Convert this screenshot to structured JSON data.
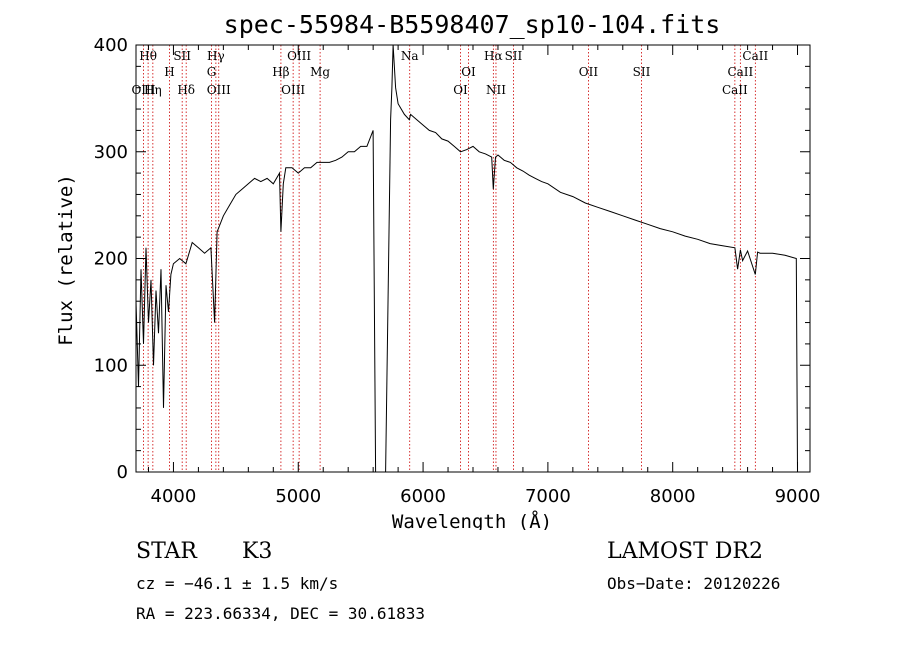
{
  "chart_data": {
    "type": "line",
    "title": "spec-55984-B5598407_sp10-104.fits",
    "xlabel": "Wavelength (Å)",
    "ylabel": "Flux (relative)",
    "xlim": [
      3700,
      9100
    ],
    "ylim": [
      0,
      400
    ],
    "xticks": [
      4000,
      5000,
      6000,
      7000,
      8000,
      9000
    ],
    "yticks": [
      0,
      100,
      200,
      300,
      400
    ],
    "grid": false,
    "series": [
      {
        "x": [
          3700,
          3720,
          3740,
          3760,
          3780,
          3800,
          3820,
          3840,
          3860,
          3880,
          3900,
          3920,
          3940,
          3960,
          3980,
          4000,
          4050,
          4100,
          4150,
          4200,
          4250,
          4300,
          4330,
          4350,
          4400,
          4450,
          4500,
          4550,
          4600,
          4650,
          4700,
          4750,
          4800,
          4850,
          4861,
          4880,
          4900,
          4950,
          5000,
          5050,
          5100,
          5150,
          5200,
          5250,
          5300,
          5350,
          5400,
          5450,
          5500,
          5550,
          5600,
          5620,
          5630,
          5650,
          5700,
          5740,
          5750,
          5760,
          5780,
          5800,
          5850,
          5890,
          5900,
          5950,
          6000,
          6050,
          6100,
          6150,
          6200,
          6250,
          6300,
          6350,
          6400,
          6450,
          6500,
          6550,
          6563,
          6580,
          6600,
          6650,
          6700,
          6750,
          6800,
          6850,
          6900,
          6950,
          7000,
          7100,
          7200,
          7300,
          7400,
          7500,
          7600,
          7700,
          7800,
          7900,
          8000,
          8100,
          8200,
          8300,
          8400,
          8498,
          8520,
          8542,
          8560,
          8600,
          8662,
          8680,
          8700,
          8800,
          8900,
          8990,
          9000
        ],
        "y": [
          160,
          80,
          190,
          120,
          210,
          140,
          180,
          100,
          170,
          130,
          190,
          60,
          175,
          150,
          185,
          195,
          200,
          195,
          215,
          210,
          205,
          210,
          140,
          225,
          240,
          250,
          260,
          265,
          270,
          275,
          272,
          275,
          270,
          280,
          225,
          270,
          285,
          285,
          280,
          285,
          285,
          290,
          290,
          290,
          292,
          295,
          300,
          300,
          305,
          305,
          320,
          0,
          0,
          0,
          0,
          330,
          360,
          400,
          360,
          345,
          335,
          330,
          335,
          330,
          325,
          320,
          318,
          312,
          310,
          305,
          300,
          302,
          305,
          300,
          298,
          295,
          265,
          295,
          297,
          292,
          290,
          285,
          282,
          278,
          275,
          272,
          270,
          262,
          258,
          252,
          248,
          244,
          240,
          236,
          232,
          228,
          225,
          221,
          218,
          214,
          212,
          210,
          190,
          208,
          198,
          207,
          185,
          206,
          205,
          205,
          203,
          200,
          0
        ]
      }
    ],
    "spectral_lines": [
      {
        "label": "Hθ",
        "x": 3797,
        "row": 0
      },
      {
        "label": "H",
        "x": 3968,
        "row": 1
      },
      {
        "label": "SII",
        "x": 4070,
        "row": 0
      },
      {
        "label": "Hγ",
        "x": 4340,
        "row": 0
      },
      {
        "label": "G",
        "x": 4305,
        "row": 1
      },
      {
        "label": "OIII",
        "x": 4363,
        "row": 3
      },
      {
        "label": "OIII",
        "x": 5007,
        "row": 0
      },
      {
        "label": "Hβ",
        "x": 4861,
        "row": 1
      },
      {
        "label": "Mg",
        "x": 5175,
        "row": 1
      },
      {
        "label": "OIII",
        "x": 4959,
        "row": 3
      },
      {
        "label": "Na",
        "x": 5893,
        "row": 0
      },
      {
        "label": "OI",
        "x": 6364,
        "row": 1
      },
      {
        "label": "OI",
        "x": 6300,
        "row": 3
      },
      {
        "label": "Hα",
        "x": 6563,
        "row": 0
      },
      {
        "label": "SII",
        "x": 6724,
        "row": 0
      },
      {
        "label": "NII",
        "x": 6584,
        "row": 3
      },
      {
        "label": "OII",
        "x": 7325,
        "row": 1
      },
      {
        "label": "SII",
        "x": 7750,
        "row": 1
      },
      {
        "label": "CaII",
        "x": 8662,
        "row": 0
      },
      {
        "label": "CaII",
        "x": 8542,
        "row": 1
      },
      {
        "label": "CaII",
        "x": 8498,
        "row": 3
      },
      {
        "label": "OIII",
        "x": 3760,
        "row": 3
      },
      {
        "label": "Hη",
        "x": 3835,
        "row": 3
      },
      {
        "label": "Hδ",
        "x": 4102,
        "row": 3
      }
    ]
  },
  "info": {
    "object_class": "STAR",
    "subclass": "K3",
    "survey": "LAMOST DR2",
    "cz": "cz = −46.1 ± 1.5 km/s",
    "obs_date": "Obs−Date: 20120226",
    "coords": "RA = 223.66334, DEC =  30.61833"
  },
  "colors": {
    "line": "#000000",
    "marker_lines": "#cc0000",
    "background": "#ffffff"
  }
}
